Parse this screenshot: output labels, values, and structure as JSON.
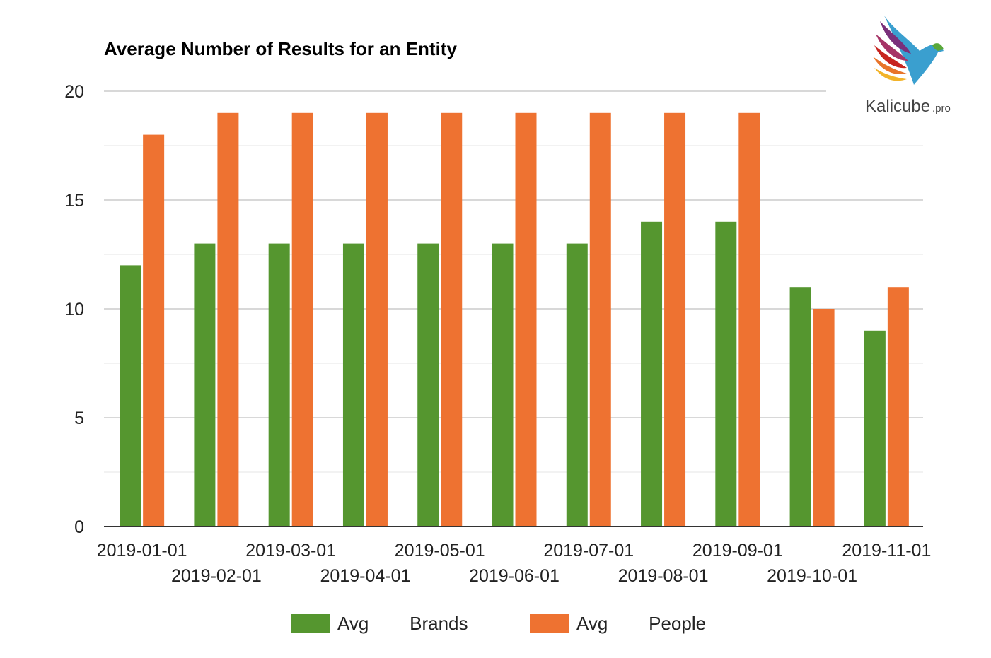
{
  "chart_data": {
    "type": "bar",
    "title": "Average Number of Results for an Entity",
    "categories": [
      "2019-01-01",
      "2019-02-01",
      "2019-03-01",
      "2019-04-01",
      "2019-05-01",
      "2019-06-01",
      "2019-07-01",
      "2019-08-01",
      "2019-09-01",
      "2019-10-01",
      "2019-11-01"
    ],
    "series": [
      {
        "name": "Avg        Brands",
        "color": "#55962f",
        "values": [
          12,
          13,
          13,
          13,
          13,
          13,
          13,
          14,
          14,
          11,
          9
        ]
      },
      {
        "name": "Avg        People",
        "color": "#ee7231",
        "values": [
          18,
          19,
          19,
          19,
          19,
          19,
          19,
          19,
          19,
          10,
          11
        ]
      }
    ],
    "ylim": [
      0,
      20
    ],
    "yticks": [
      0,
      5,
      10,
      15,
      20
    ],
    "grid": true,
    "legend_position": "bottom",
    "xlabel": "",
    "ylabel": ""
  },
  "logo": {
    "name": "Kalicube",
    "suffix": ".pro",
    "icon": "bird-logo-icon"
  }
}
